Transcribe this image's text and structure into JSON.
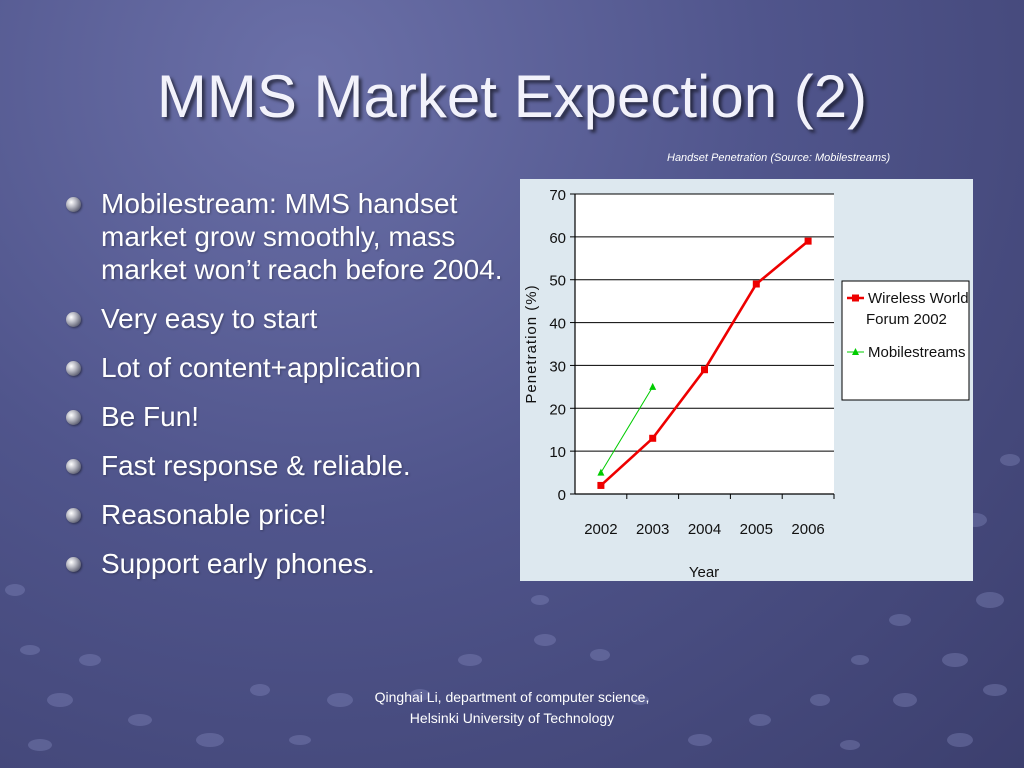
{
  "slide": {
    "title": "MMS Market Expection (2)",
    "caption": "Handset Penetration (Source: Mobilestreams)",
    "bullets": [
      "Mobilestream: MMS handset market grow smoothly, mass market won’t reach before 2004.",
      "Very easy to start",
      "Lot of content+application",
      "Be Fun!",
      "Fast response & reliable.",
      "Reasonable price!",
      "Support early phones."
    ],
    "footer": "Qinghai Li, department of computer science, Helsinki University of Technology"
  },
  "colors": {
    "wwf_series": "#ee0000",
    "mobilestreams_series": "#00cc00",
    "chart_background": "#dde8ef"
  },
  "chart_data": {
    "type": "line",
    "title": "",
    "xlabel": "Year",
    "ylabel": "Penetration (%)",
    "categories": [
      "2002",
      "2003",
      "2004",
      "2005",
      "2006"
    ],
    "ylim": [
      0,
      70
    ],
    "yticks": [
      0,
      10,
      20,
      30,
      40,
      50,
      60,
      70
    ],
    "grid": true,
    "legend": "right",
    "series": [
      {
        "name": "Wireless World Forum 2002",
        "name_lines": [
          "Wireless World",
          "Forum 2002"
        ],
        "marker": "square",
        "x": [
          "2002",
          "2003",
          "2004",
          "2005",
          "2006"
        ],
        "values": [
          2,
          13,
          29,
          49,
          59
        ]
      },
      {
        "name": "Mobilestreams",
        "name_lines": [
          "Mobilestreams"
        ],
        "marker": "triangle",
        "x": [
          "2002",
          "2003"
        ],
        "values": [
          5,
          25
        ]
      }
    ]
  }
}
